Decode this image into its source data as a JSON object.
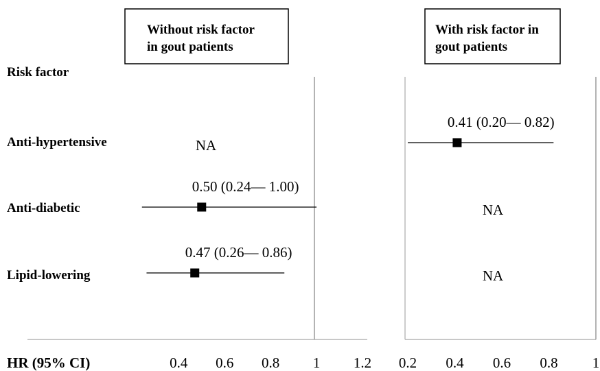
{
  "chart_data": [
    {
      "type": "forest",
      "panel_title": "Without risk factor in gout patients",
      "panel_title_lines": [
        "Without risk factor",
        "in gout patients"
      ],
      "row_header": "Risk factor",
      "axis_label": "HR (95% CI)",
      "reference_line": 1,
      "xlim": [
        0.16,
        1.2
      ],
      "ticks": [
        0.4,
        0.6,
        0.8,
        1,
        1.2
      ],
      "tick_labels": [
        "0.4",
        "0.6",
        "0.8",
        "1",
        "1.2"
      ],
      "rows": [
        {
          "label": "Anti-hypertensive",
          "hr": null,
          "lo": null,
          "hi": null,
          "text": "NA"
        },
        {
          "label": "Anti-diabetic",
          "hr": 0.5,
          "lo": 0.24,
          "hi": 1.0,
          "text": "0.50 (0.24— 1.00)"
        },
        {
          "label": "Lipid-lowering",
          "hr": 0.47,
          "lo": 0.26,
          "hi": 0.86,
          "text": "0.47 (0.26— 0.86)"
        }
      ]
    },
    {
      "type": "forest",
      "panel_title": "With risk factor in gout patients",
      "panel_title_lines": [
        "With risk factor in",
        "gout patients"
      ],
      "xlim": [
        0.2,
        1.0
      ],
      "ticks": [
        0.2,
        0.4,
        0.6,
        0.8,
        1
      ],
      "tick_labels": [
        "0.2",
        "0.4",
        "0.6",
        "0.8",
        "1"
      ],
      "rows": [
        {
          "label": "Anti-hypertensive",
          "hr": 0.41,
          "lo": 0.2,
          "hi": 0.82,
          "text": "0.41 (0.20— 0.82)"
        },
        {
          "label": "Anti-diabetic",
          "hr": null,
          "lo": null,
          "hi": null,
          "text": "NA"
        },
        {
          "label": "Lipid-lowering",
          "hr": null,
          "lo": null,
          "hi": null,
          "text": "NA"
        }
      ]
    }
  ]
}
